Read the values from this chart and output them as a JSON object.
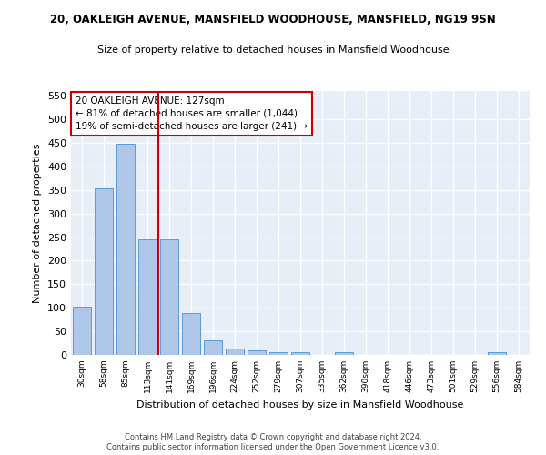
{
  "title1": "20, OAKLEIGH AVENUE, MANSFIELD WOODHOUSE, MANSFIELD, NG19 9SN",
  "title2": "Size of property relative to detached houses in Mansfield Woodhouse",
  "xlabel": "Distribution of detached houses by size in Mansfield Woodhouse",
  "ylabel": "Number of detached properties",
  "footnote1": "Contains HM Land Registry data © Crown copyright and database right 2024.",
  "footnote2": "Contains public sector information licensed under the Open Government Licence v3.0.",
  "bar_labels": [
    "30sqm",
    "58sqm",
    "85sqm",
    "113sqm",
    "141sqm",
    "169sqm",
    "196sqm",
    "224sqm",
    "252sqm",
    "279sqm",
    "307sqm",
    "335sqm",
    "362sqm",
    "390sqm",
    "418sqm",
    "446sqm",
    "473sqm",
    "501sqm",
    "529sqm",
    "556sqm",
    "584sqm"
  ],
  "bar_values": [
    103,
    353,
    448,
    245,
    245,
    88,
    30,
    13,
    9,
    5,
    5,
    0,
    5,
    0,
    0,
    0,
    0,
    0,
    0,
    5,
    0
  ],
  "bar_color": "#aec6e8",
  "bar_edge_color": "#5b9bd5",
  "bg_color": "#e8eef7",
  "grid_color": "#ffffff",
  "property_line_color": "#cc0000",
  "annotation_line1": "20 OAKLEIGH AVENUE: 127sqm",
  "annotation_line2": "← 81% of detached houses are smaller (1,044)",
  "annotation_line3": "19% of semi-detached houses are larger (241) →",
  "annotation_box_edgecolor": "#cc0000",
  "ylim_max": 560,
  "yticks": [
    0,
    50,
    100,
    150,
    200,
    250,
    300,
    350,
    400,
    450,
    500,
    550
  ]
}
